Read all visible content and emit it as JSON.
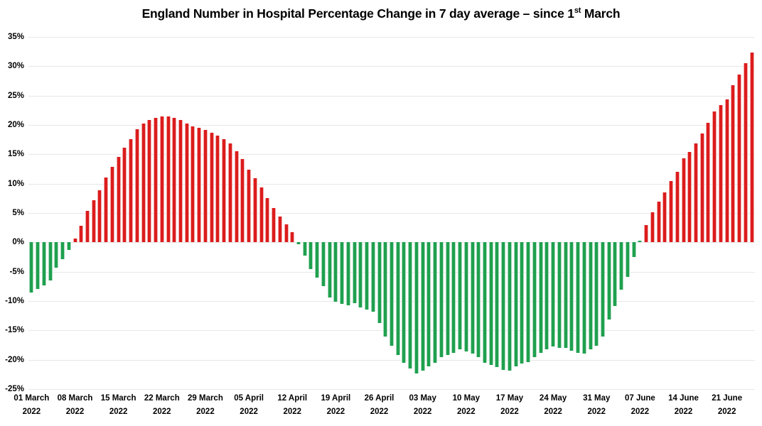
{
  "chart_data": {
    "type": "bar",
    "title": "England Number in Hospital Percentage Change in 7 day average – since 1st March",
    "title_parts": {
      "main": "England Number in Hospital Percentage Change in 7 day average – since 1",
      "superscript": "st",
      "tail": " March"
    },
    "series_name": "Percentage change in 7 day average",
    "x_tick_step_days": 7,
    "x_tick_labels": [
      {
        "l1": "01 March",
        "l2": "2022"
      },
      {
        "l1": "08 March",
        "l2": "2022"
      },
      {
        "l1": "15 March",
        "l2": "2022"
      },
      {
        "l1": "22 March",
        "l2": "2022"
      },
      {
        "l1": "29 March",
        "l2": "2022"
      },
      {
        "l1": "05 April",
        "l2": "2022"
      },
      {
        "l1": "12 April",
        "l2": "2022"
      },
      {
        "l1": "19 April",
        "l2": "2022"
      },
      {
        "l1": "26 April",
        "l2": "2022"
      },
      {
        "l1": "03 May",
        "l2": "2022"
      },
      {
        "l1": "10 May",
        "l2": "2022"
      },
      {
        "l1": "17 May",
        "l2": "2022"
      },
      {
        "l1": "24 May",
        "l2": "2022"
      },
      {
        "l1": "31 May",
        "l2": "2022"
      },
      {
        "l1": "07 June",
        "l2": "2022"
      },
      {
        "l1": "14 June",
        "l2": "2022"
      },
      {
        "l1": "21 June",
        "l2": "2022"
      }
    ],
    "y_tick_labels": [
      "35%",
      "30%",
      "25%",
      "20%",
      "15%",
      "10%",
      "5%",
      "0%",
      "-5%",
      "-10%",
      "-15%",
      "-20%",
      "-25%"
    ],
    "ylim": [
      -25,
      35
    ],
    "grid": true,
    "legend": "none",
    "values": [
      -8.5,
      -8.0,
      -7.3,
      -6.5,
      -4.3,
      -2.9,
      -1.3,
      0.7,
      2.8,
      5.4,
      7.2,
      8.9,
      11.0,
      12.9,
      14.6,
      16.1,
      17.6,
      19.3,
      20.3,
      20.8,
      21.2,
      21.4,
      21.5,
      21.2,
      20.8,
      20.2,
      19.8,
      19.5,
      19.2,
      18.7,
      18.2,
      17.6,
      16.9,
      15.5,
      14.2,
      12.4,
      10.9,
      9.4,
      7.6,
      5.8,
      4.4,
      3.1,
      1.7,
      -0.3,
      -2.2,
      -4.5,
      -6.0,
      -7.5,
      -9.4,
      -10.1,
      -10.5,
      -10.7,
      -10.4,
      -11.1,
      -11.4,
      -11.8,
      -13.8,
      -16.0,
      -17.6,
      -19.2,
      -20.5,
      -21.5,
      -22.3,
      -21.9,
      -21.1,
      -20.5,
      -19.6,
      -19.2,
      -18.8,
      -18.2,
      -18.6,
      -19.0,
      -19.6,
      -20.5,
      -20.9,
      -21.3,
      -21.7,
      -21.9,
      -21.1,
      -20.7,
      -20.4,
      -19.6,
      -18.8,
      -18.2,
      -17.8,
      -18.0,
      -18.0,
      -18.5,
      -18.8,
      -19.0,
      -18.2,
      -17.6,
      -16.0,
      -13.2,
      -10.8,
      -8.1,
      -5.9,
      -2.5,
      0.3,
      2.9,
      5.1,
      6.9,
      8.5,
      10.5,
      12.0,
      14.3,
      15.4,
      16.8,
      18.6,
      20.4,
      22.3,
      23.4,
      24.4,
      26.8,
      28.6,
      30.5,
      32.3
    ],
    "color_overrides": {
      "98": "negative"
    },
    "positive_color": "#dc1c1c",
    "positive_edge_color": "#f0a8a8",
    "negative_color": "#1fa04e",
    "negative_edge_color": "#a6d9bb",
    "gridline_color": "#e7e7e7",
    "text_color": "#000000"
  }
}
